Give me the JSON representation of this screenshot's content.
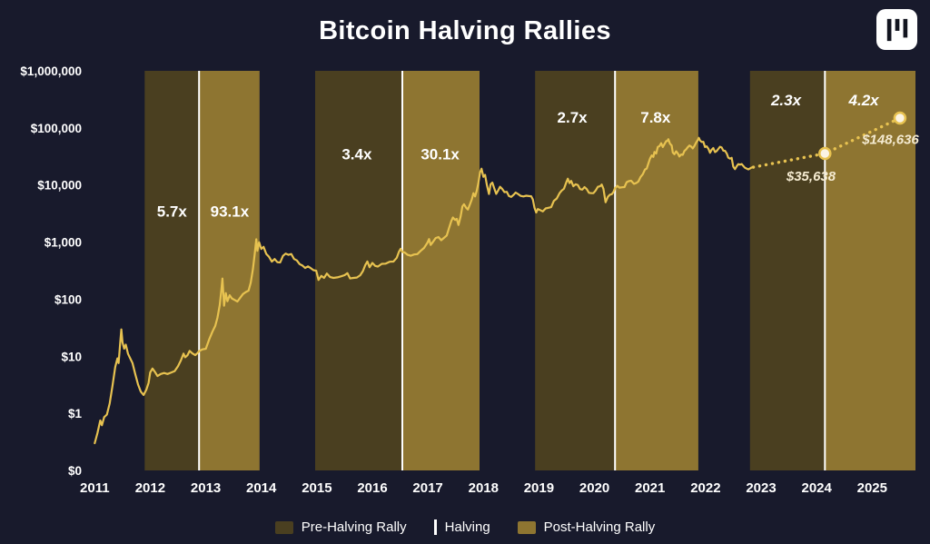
{
  "header": {
    "title": "Bitcoin Halving Rallies"
  },
  "icons": {
    "logo": "pantera-mark-icon"
  },
  "colors": {
    "background": "#181a2c",
    "pre_band": "#4a3f20",
    "post_band": "#8e7531",
    "line": "#e7c250",
    "halving_line": "#ffffff",
    "text": "#ffffff",
    "annotation_text": "#f4ead0",
    "marker_fill": "#fbf4e4"
  },
  "legend": {
    "items": [
      {
        "label": "Pre-Halving Rally",
        "swatch": "pre"
      },
      {
        "label": "Halving",
        "swatch": "halving-line"
      },
      {
        "label": "Post-Halving Rally",
        "swatch": "post"
      }
    ]
  },
  "chart_data": {
    "type": "line",
    "title": "Bitcoin Halving Rallies",
    "y_axis": {
      "scale": "log",
      "tick_labels": [
        "$1,000,000",
        "$100,000",
        "$10,000",
        "$1,000",
        "$100",
        "$10",
        "$1",
        "$0"
      ]
    },
    "x_axis": {
      "min": 2010.93,
      "max": 2025.78,
      "ticks": [
        2011,
        2012,
        2013,
        2014,
        2015,
        2016,
        2017,
        2018,
        2019,
        2020,
        2021,
        2022,
        2023,
        2024,
        2025
      ]
    },
    "halvings": [
      2012.88,
      2016.54,
      2020.37,
      2024.15
    ],
    "rally_bands": [
      {
        "phase": "pre",
        "start": 2011.9,
        "end": 2012.88,
        "multiplier": "5.7x",
        "label_x": 2012.39,
        "label_value": 2800,
        "projected": false
      },
      {
        "phase": "post",
        "start": 2012.88,
        "end": 2013.97,
        "multiplier": "93.1x",
        "label_x": 2013.43,
        "label_value": 2800,
        "projected": false
      },
      {
        "phase": "pre",
        "start": 2014.97,
        "end": 2016.54,
        "multiplier": "3.4x",
        "label_x": 2015.72,
        "label_value": 28000,
        "projected": false
      },
      {
        "phase": "post",
        "start": 2016.54,
        "end": 2017.93,
        "multiplier": "30.1x",
        "label_x": 2017.22,
        "label_value": 28000,
        "projected": false
      },
      {
        "phase": "pre",
        "start": 2018.93,
        "end": 2020.37,
        "multiplier": "2.7x",
        "label_x": 2019.6,
        "label_value": 125000,
        "projected": false
      },
      {
        "phase": "post",
        "start": 2020.37,
        "end": 2021.87,
        "multiplier": "7.8x",
        "label_x": 2021.1,
        "label_value": 125000,
        "projected": false
      },
      {
        "phase": "pre",
        "start": 2022.8,
        "end": 2024.15,
        "multiplier": "2.3x",
        "label_x": 2023.45,
        "label_value": 250000,
        "projected": true
      },
      {
        "phase": "post",
        "start": 2024.15,
        "end": 2025.78,
        "multiplier": "4.2x",
        "label_x": 2024.85,
        "label_value": 250000,
        "projected": true
      }
    ],
    "series": {
      "name": "BTC Price",
      "points": [
        [
          2011.0,
          0.3
        ],
        [
          2011.05,
          0.45
        ],
        [
          2011.1,
          0.75
        ],
        [
          2011.13,
          0.62
        ],
        [
          2011.17,
          0.86
        ],
        [
          2011.22,
          0.95
        ],
        [
          2011.27,
          1.5
        ],
        [
          2011.32,
          3.0
        ],
        [
          2011.37,
          6.5
        ],
        [
          2011.41,
          9.2
        ],
        [
          2011.43,
          7.6
        ],
        [
          2011.46,
          17.5
        ],
        [
          2011.48,
          29.6
        ],
        [
          2011.5,
          17.5
        ],
        [
          2011.53,
          13.6
        ],
        [
          2011.56,
          16.0
        ],
        [
          2011.6,
          11.0
        ],
        [
          2011.64,
          9.2
        ],
        [
          2011.68,
          7.6
        ],
        [
          2011.73,
          4.9
        ],
        [
          2011.78,
          3.2
        ],
        [
          2011.83,
          2.4
        ],
        [
          2011.88,
          2.1
        ],
        [
          2011.93,
          2.6
        ],
        [
          2011.97,
          3.4
        ],
        [
          2012.0,
          5.2
        ],
        [
          2012.04,
          6.1
        ],
        [
          2012.08,
          5.4
        ],
        [
          2012.13,
          4.5
        ],
        [
          2012.19,
          4.9
        ],
        [
          2012.25,
          5.1
        ],
        [
          2012.31,
          4.9
        ],
        [
          2012.38,
          5.2
        ],
        [
          2012.44,
          5.5
        ],
        [
          2012.5,
          6.7
        ],
        [
          2012.55,
          8.4
        ],
        [
          2012.6,
          11.1
        ],
        [
          2012.63,
          9.6
        ],
        [
          2012.67,
          10.4
        ],
        [
          2012.71,
          12.4
        ],
        [
          2012.76,
          11.2
        ],
        [
          2012.81,
          10.5
        ],
        [
          2012.85,
          11.3
        ],
        [
          2012.88,
          12.3
        ],
        [
          2012.94,
          13.2
        ],
        [
          2013.0,
          13.5
        ],
        [
          2013.06,
          19.5
        ],
        [
          2013.12,
          27
        ],
        [
          2013.17,
          34
        ],
        [
          2013.21,
          47
        ],
        [
          2013.25,
          78
        ],
        [
          2013.28,
          142
        ],
        [
          2013.3,
          230
        ],
        [
          2013.33,
          77
        ],
        [
          2013.36,
          128
        ],
        [
          2013.39,
          92
        ],
        [
          2013.43,
          117
        ],
        [
          2013.47,
          103
        ],
        [
          2013.52,
          97
        ],
        [
          2013.57,
          91
        ],
        [
          2013.62,
          106
        ],
        [
          2013.67,
          123
        ],
        [
          2013.72,
          133
        ],
        [
          2013.77,
          141
        ],
        [
          2013.81,
          196
        ],
        [
          2013.85,
          338
        ],
        [
          2013.88,
          610
        ],
        [
          2013.91,
          1120
        ],
        [
          2013.93,
          705
        ],
        [
          2013.96,
          995
        ],
        [
          2014.0,
          760
        ],
        [
          2014.04,
          825
        ],
        [
          2014.09,
          620
        ],
        [
          2014.14,
          550
        ],
        [
          2014.19,
          455
        ],
        [
          2014.24,
          505
        ],
        [
          2014.29,
          445
        ],
        [
          2014.34,
          440
        ],
        [
          2014.39,
          575
        ],
        [
          2014.44,
          630
        ],
        [
          2014.49,
          598
        ],
        [
          2014.54,
          618
        ],
        [
          2014.59,
          505
        ],
        [
          2014.64,
          478
        ],
        [
          2014.69,
          412
        ],
        [
          2014.74,
          388
        ],
        [
          2014.79,
          352
        ],
        [
          2014.84,
          376
        ],
        [
          2014.89,
          350
        ],
        [
          2014.94,
          322
        ],
        [
          2014.99,
          315
        ],
        [
          2015.03,
          218
        ],
        [
          2015.08,
          256
        ],
        [
          2015.13,
          236
        ],
        [
          2015.18,
          281
        ],
        [
          2015.24,
          244
        ],
        [
          2015.3,
          236
        ],
        [
          2015.37,
          241
        ],
        [
          2015.44,
          252
        ],
        [
          2015.5,
          263
        ],
        [
          2015.55,
          285
        ],
        [
          2015.6,
          231
        ],
        [
          2015.66,
          236
        ],
        [
          2015.72,
          239
        ],
        [
          2015.78,
          262
        ],
        [
          2015.83,
          310
        ],
        [
          2015.87,
          392
        ],
        [
          2015.91,
          458
        ],
        [
          2015.95,
          362
        ],
        [
          2016.0,
          432
        ],
        [
          2016.05,
          382
        ],
        [
          2016.1,
          373
        ],
        [
          2016.17,
          416
        ],
        [
          2016.24,
          419
        ],
        [
          2016.31,
          452
        ],
        [
          2016.38,
          456
        ],
        [
          2016.44,
          532
        ],
        [
          2016.48,
          685
        ],
        [
          2016.51,
          765
        ],
        [
          2016.54,
          672
        ],
        [
          2016.58,
          658
        ],
        [
          2016.63,
          602
        ],
        [
          2016.69,
          577
        ],
        [
          2016.75,
          608
        ],
        [
          2016.81,
          616
        ],
        [
          2016.87,
          702
        ],
        [
          2016.93,
          790
        ],
        [
          2016.99,
          965
        ],
        [
          2017.02,
          1128
        ],
        [
          2017.05,
          892
        ],
        [
          2017.09,
          1005
        ],
        [
          2017.14,
          1178
        ],
        [
          2017.19,
          1228
        ],
        [
          2017.24,
          1078
        ],
        [
          2017.29,
          1185
        ],
        [
          2017.34,
          1305
        ],
        [
          2017.38,
          1755
        ],
        [
          2017.42,
          2310
        ],
        [
          2017.45,
          2695
        ],
        [
          2017.49,
          2445
        ],
        [
          2017.52,
          2555
        ],
        [
          2017.55,
          1995
        ],
        [
          2017.59,
          2815
        ],
        [
          2017.62,
          4205
        ],
        [
          2017.65,
          4595
        ],
        [
          2017.69,
          3995
        ],
        [
          2017.72,
          3715
        ],
        [
          2017.75,
          4395
        ],
        [
          2017.79,
          5605
        ],
        [
          2017.82,
          7195
        ],
        [
          2017.85,
          6305
        ],
        [
          2017.88,
          7995
        ],
        [
          2017.91,
          10995
        ],
        [
          2017.94,
          16695
        ],
        [
          2017.965,
          19290
        ],
        [
          2018.0,
          13890
        ],
        [
          2018.03,
          15050
        ],
        [
          2018.06,
          10195
        ],
        [
          2018.1,
          6955
        ],
        [
          2018.13,
          10295
        ],
        [
          2018.16,
          10990
        ],
        [
          2018.2,
          8495
        ],
        [
          2018.23,
          6995
        ],
        [
          2018.27,
          8195
        ],
        [
          2018.3,
          9295
        ],
        [
          2018.34,
          8495
        ],
        [
          2018.38,
          7495
        ],
        [
          2018.42,
          7595
        ],
        [
          2018.46,
          6395
        ],
        [
          2018.5,
          6195
        ],
        [
          2018.54,
          6695
        ],
        [
          2018.58,
          7395
        ],
        [
          2018.62,
          6995
        ],
        [
          2018.67,
          6445
        ],
        [
          2018.72,
          6295
        ],
        [
          2018.77,
          6495
        ],
        [
          2018.82,
          6395
        ],
        [
          2018.86,
          6345
        ],
        [
          2018.89,
          5595
        ],
        [
          2018.92,
          3995
        ],
        [
          2018.95,
          3295
        ],
        [
          2018.98,
          3795
        ],
        [
          2019.02,
          3645
        ],
        [
          2019.07,
          3445
        ],
        [
          2019.12,
          3895
        ],
        [
          2019.17,
          3995
        ],
        [
          2019.22,
          4095
        ],
        [
          2019.27,
          5295
        ],
        [
          2019.32,
          5795
        ],
        [
          2019.37,
          7195
        ],
        [
          2019.41,
          7995
        ],
        [
          2019.45,
          8595
        ],
        [
          2019.49,
          10995
        ],
        [
          2019.52,
          12895
        ],
        [
          2019.55,
          10795
        ],
        [
          2019.58,
          11795
        ],
        [
          2019.62,
          9495
        ],
        [
          2019.66,
          10295
        ],
        [
          2019.7,
          9995
        ],
        [
          2019.74,
          8495
        ],
        [
          2019.78,
          8295
        ],
        [
          2019.82,
          9195
        ],
        [
          2019.86,
          8495
        ],
        [
          2019.9,
          7295
        ],
        [
          2019.94,
          7195
        ],
        [
          2019.98,
          7195
        ],
        [
          2020.02,
          7995
        ],
        [
          2020.06,
          9295
        ],
        [
          2020.1,
          9495
        ],
        [
          2020.13,
          10195
        ],
        [
          2020.16,
          8595
        ],
        [
          2020.2,
          4995
        ],
        [
          2020.24,
          6195
        ],
        [
          2020.28,
          6795
        ],
        [
          2020.31,
          6895
        ],
        [
          2020.34,
          7495
        ],
        [
          2020.37,
          8795
        ],
        [
          2020.41,
          9695
        ],
        [
          2020.45,
          8995
        ],
        [
          2020.5,
          9145
        ],
        [
          2020.54,
          9195
        ],
        [
          2020.58,
          11195
        ],
        [
          2020.62,
          11695
        ],
        [
          2020.66,
          11895
        ],
        [
          2020.71,
          10495
        ],
        [
          2020.75,
          10795
        ],
        [
          2020.79,
          11495
        ],
        [
          2020.83,
          13795
        ],
        [
          2020.87,
          15495
        ],
        [
          2020.91,
          18695
        ],
        [
          2020.94,
          19395
        ],
        [
          2020.97,
          23795
        ],
        [
          2021.0,
          28995
        ],
        [
          2021.03,
          32995
        ],
        [
          2021.06,
          30995
        ],
        [
          2021.08,
          37995
        ],
        [
          2021.11,
          35495
        ],
        [
          2021.14,
          46495
        ],
        [
          2021.17,
          47995
        ],
        [
          2021.2,
          53995
        ],
        [
          2021.23,
          46295
        ],
        [
          2021.26,
          51995
        ],
        [
          2021.29,
          58795
        ],
        [
          2021.31,
          58995
        ],
        [
          2021.33,
          63495
        ],
        [
          2021.36,
          52995
        ],
        [
          2021.39,
          48995
        ],
        [
          2021.41,
          36995
        ],
        [
          2021.44,
          34695
        ],
        [
          2021.47,
          38995
        ],
        [
          2021.5,
          35795
        ],
        [
          2021.53,
          31595
        ],
        [
          2021.56,
          34295
        ],
        [
          2021.59,
          33795
        ],
        [
          2021.62,
          39495
        ],
        [
          2021.65,
          42195
        ],
        [
          2021.68,
          45995
        ],
        [
          2021.71,
          49295
        ],
        [
          2021.74,
          47095
        ],
        [
          2021.77,
          43795
        ],
        [
          2021.8,
          48095
        ],
        [
          2021.83,
          55295
        ],
        [
          2021.86,
          61295
        ],
        [
          2021.88,
          66895
        ],
        [
          2021.9,
          60295
        ],
        [
          2021.93,
          56895
        ],
        [
          2021.96,
          57195
        ],
        [
          2021.99,
          46195
        ],
        [
          2022.02,
          47695
        ],
        [
          2022.05,
          43495
        ],
        [
          2022.08,
          36795
        ],
        [
          2022.11,
          41495
        ],
        [
          2022.14,
          44495
        ],
        [
          2022.17,
          37695
        ],
        [
          2022.2,
          39395
        ],
        [
          2022.23,
          42895
        ],
        [
          2022.26,
          46795
        ],
        [
          2022.29,
          45495
        ],
        [
          2022.32,
          39995
        ],
        [
          2022.35,
          39695
        ],
        [
          2022.38,
          35995
        ],
        [
          2022.41,
          30095
        ],
        [
          2022.44,
          28995
        ],
        [
          2022.47,
          29895
        ],
        [
          2022.5,
          20995
        ],
        [
          2022.53,
          18995
        ],
        [
          2022.56,
          21195
        ],
        [
          2022.59,
          23195
        ],
        [
          2022.62,
          22695
        ],
        [
          2022.65,
          23295
        ],
        [
          2022.68,
          21495
        ],
        [
          2022.71,
          19995
        ],
        [
          2022.74,
          19395
        ],
        [
          2022.77,
          18795
        ],
        [
          2022.8,
          19495
        ],
        [
          2022.83,
          20295
        ],
        [
          2022.86,
          20495
        ]
      ]
    },
    "projection": {
      "name": "Projected Price",
      "points": [
        [
          2022.86,
          20495
        ],
        [
          2024.15,
          35638
        ],
        [
          2025.5,
          148636
        ]
      ],
      "markers": [
        {
          "x": 2024.15,
          "value": 35638,
          "label": "$35,638",
          "label_x": 2023.9,
          "label_value": 11800
        },
        {
          "x": 2025.5,
          "value": 148636,
          "label": "$148,636",
          "label_x": 2025.33,
          "label_value": 52000
        }
      ]
    }
  }
}
